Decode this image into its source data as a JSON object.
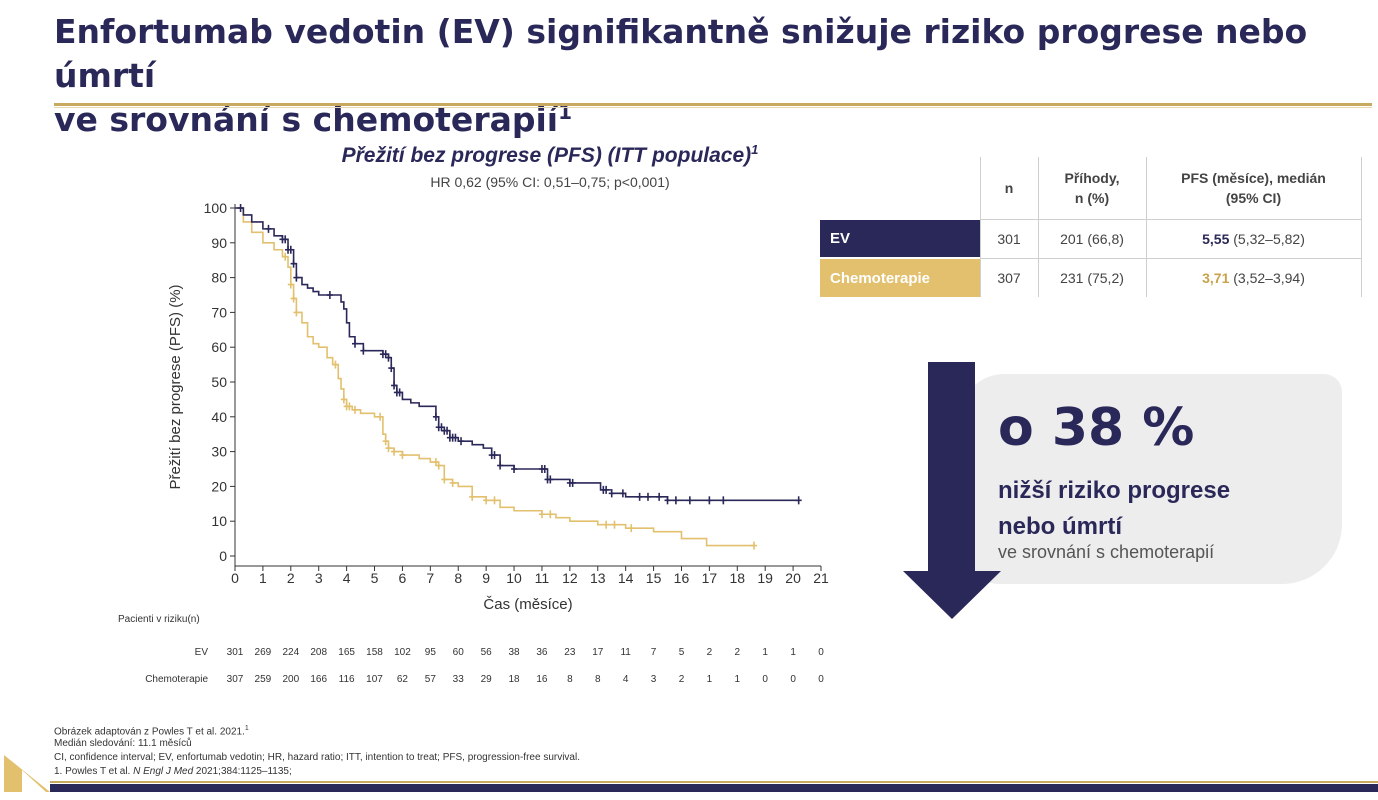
{
  "slide": {
    "title_line1": "Enfortumab vedotin (EV) signifikantně snižuje riziko progrese nebo úmrtí",
    "title_line2": "ve srovnání s chemoterapií",
    "title_sup": "1"
  },
  "chart_data": {
    "type": "line",
    "title": "Přežití bez progrese (PFS) (ITT populace)",
    "title_sup": "1",
    "subtitle": "HR 0,62 (95% CI: 0,51–0,75; p<0,001)",
    "xlabel": "Čas (měsíce)",
    "ylabel": "Přežití bez progrese (PFS) (%)",
    "xlim": [
      0,
      21
    ],
    "ylim": [
      0,
      100
    ],
    "xticks": [
      0,
      1,
      2,
      3,
      4,
      5,
      6,
      7,
      8,
      9,
      10,
      11,
      12,
      13,
      14,
      15,
      16,
      17,
      18,
      19,
      20,
      21
    ],
    "yticks": [
      0,
      10,
      20,
      30,
      40,
      50,
      60,
      70,
      80,
      90,
      100
    ],
    "colors": {
      "EV": "#2a2858",
      "Chemoterapie": "#e2c06e"
    },
    "series": [
      {
        "name": "EV",
        "x": [
          0,
          0.3,
          0.6,
          1.0,
          1.4,
          1.7,
          1.9,
          2.1,
          2.2,
          2.4,
          2.6,
          2.8,
          3.0,
          3.2,
          3.5,
          3.8,
          3.9,
          4.0,
          4.1,
          4.3,
          4.6,
          5.0,
          5.3,
          5.5,
          5.6,
          5.7,
          5.8,
          6.0,
          6.3,
          6.6,
          6.9,
          7.2,
          7.3,
          7.5,
          7.7,
          8.0,
          8.5,
          8.9,
          9.2,
          9.5,
          10.0,
          10.6,
          11.0,
          11.2,
          12.0,
          12.8,
          13.1,
          13.5,
          14.0,
          14.5,
          15.0,
          15.5,
          16.5,
          17.5,
          18.5,
          19.5,
          20.2
        ],
        "y": [
          100,
          98,
          96,
          94,
          92,
          91,
          88,
          84,
          80,
          78,
          77,
          76,
          75,
          75,
          75,
          73,
          71,
          67,
          63,
          61,
          59,
          59,
          58,
          57,
          54,
          49,
          47,
          45,
          44,
          43,
          43,
          40,
          37,
          36,
          34,
          33,
          32,
          31,
          29,
          26,
          25,
          25,
          25,
          22,
          21,
          21,
          19,
          18,
          17,
          17,
          17,
          16,
          16,
          16,
          16,
          16,
          16
        ]
      },
      {
        "name": "Chemoterapie",
        "x": [
          0,
          0.3,
          0.6,
          1.0,
          1.4,
          1.7,
          1.9,
          2.0,
          2.1,
          2.2,
          2.4,
          2.6,
          2.8,
          3.0,
          3.3,
          3.5,
          3.7,
          3.8,
          3.9,
          4.0,
          4.2,
          4.5,
          5.0,
          5.3,
          5.4,
          5.5,
          5.7,
          6.0,
          6.6,
          7.0,
          7.3,
          7.5,
          7.8,
          8.0,
          8.5,
          9.0,
          9.5,
          10.0,
          11.0,
          11.5,
          12.0,
          13.0,
          14.0,
          15.0,
          16.0,
          16.9,
          17.5,
          18.6
        ],
        "y": [
          100,
          96,
          93,
          90,
          88,
          86,
          83,
          78,
          74,
          70,
          67,
          63,
          61,
          60,
          57,
          55,
          51,
          48,
          45,
          43,
          42,
          41,
          40,
          35,
          33,
          31,
          30,
          29,
          28,
          27,
          26,
          22,
          21,
          20,
          17,
          16,
          14,
          13,
          12,
          11,
          10,
          9,
          8,
          7,
          5,
          3,
          3,
          3
        ]
      }
    ],
    "censor_marks": [
      {
        "series": "EV",
        "x": [
          0.2,
          1.2,
          1.7,
          1.8,
          1.9,
          2.0,
          2.1,
          2.2,
          3.4,
          4.3,
          4.6,
          5.3,
          5.4,
          5.5,
          5.6,
          5.7,
          5.8,
          5.9,
          7.2,
          7.3,
          7.4,
          7.5,
          7.6,
          7.7,
          7.8,
          7.9,
          8.1,
          9.2,
          9.3,
          9.5,
          10.0,
          11.0,
          11.1,
          11.2,
          11.3,
          12.0,
          12.1,
          13.2,
          13.3,
          13.5,
          13.9,
          14.5,
          14.8,
          15.2,
          15.5,
          15.8,
          16.3,
          17.0,
          17.5,
          20.2
        ]
      },
      {
        "series": "Chemoterapie",
        "x": [
          1.8,
          2.0,
          2.1,
          2.2,
          3.6,
          3.9,
          4.0,
          4.1,
          4.3,
          5.2,
          5.4,
          5.5,
          5.7,
          6.0,
          7.2,
          7.3,
          7.5,
          7.8,
          8.5,
          9.0,
          9.3,
          11.0,
          11.3,
          13.3,
          13.6,
          14.2,
          18.6
        ]
      }
    ],
    "risk_table": {
      "title": "Pacienti v riziku(n)",
      "times": [
        0,
        1,
        2,
        3,
        4,
        5,
        6,
        7,
        8,
        9,
        10,
        11,
        12,
        13,
        14,
        15,
        16,
        17,
        18,
        19,
        20,
        21
      ],
      "rows": [
        {
          "label": "EV",
          "values": [
            "301",
            "269",
            "224",
            "208",
            "165",
            "158",
            "102",
            "95",
            "60",
            "56",
            "38",
            "36",
            "23",
            "17",
            "11",
            "7",
            "5",
            "2",
            "2",
            "1",
            "1",
            "0"
          ]
        },
        {
          "label": "Chemoterapie",
          "values": [
            "307",
            "259",
            "200",
            "166",
            "116",
            "107",
            "62",
            "57",
            "33",
            "29",
            "18",
            "16",
            "8",
            "8",
            "4",
            "3",
            "2",
            "1",
            "1",
            "0",
            "0",
            "0"
          ]
        }
      ]
    },
    "legend": "none",
    "grid": false
  },
  "summary_table": {
    "headers": {
      "n": "n",
      "events_l1": "Příhody,",
      "events_l2": "n (%)",
      "pfs_l1": "PFS (měsíce), medián",
      "pfs_l2": "(95%  CI)"
    },
    "rows": [
      {
        "arm": "EV",
        "n": "301",
        "events": "201 (66,8)",
        "median": "5,55",
        "ci": "(5,32–5,82)"
      },
      {
        "arm": "Chemoterapie",
        "n": "307",
        "events": "231 (75,2)",
        "median": "3,71",
        "ci": "(3,52–3,94)"
      }
    ]
  },
  "callout": {
    "pct": "o 38 %",
    "line1": "nižší riziko progrese",
    "line2": "nebo úmrtí",
    "line3": "ve srovnání s chemoterapií"
  },
  "footnotes": {
    "line1": "Obrázek adaptován z Powles T et al. 2021.",
    "line1_sup": "1",
    "line2": "Medián sledování: 11.1 měsíců",
    "line3": "CI, confidence interval; EV, enfortumab vedotin; HR, hazard ratio; ITT, intention to treat; PFS, progression-free survival.",
    "line4_a": "1. Powles T et al. ",
    "line4_b": "N Engl J Med",
    "line4_c": " 2021;384:1125–1135;"
  }
}
